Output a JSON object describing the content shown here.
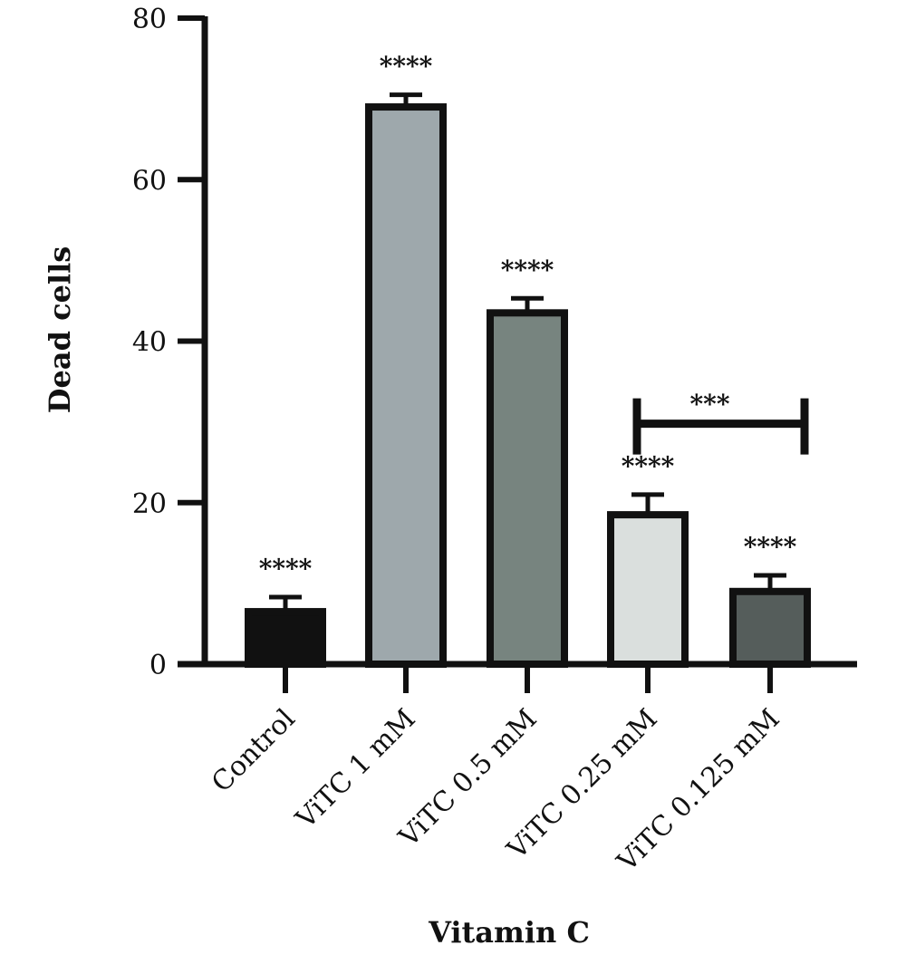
{
  "chart_data": {
    "type": "bar",
    "title": "",
    "xlabel": "Vitamin C",
    "ylabel": "Dead cells",
    "ylim": [
      0,
      80
    ],
    "yticks": [
      0,
      20,
      40,
      60,
      80
    ],
    "grid": false,
    "categories": [
      "Control",
      "ViTC 1 mM",
      "ViTC 0.5 mM",
      "ViTC 0.25 mM",
      "ViTC 0.125 mM"
    ],
    "values": [
      6.5,
      69,
      43.5,
      18.5,
      9
    ],
    "errors": [
      1.8,
      1.5,
      1.8,
      2.5,
      2.0
    ],
    "colors": [
      "#111111",
      "#9ea8ac",
      "#77847f",
      "#dadfdd",
      "#555d5b"
    ],
    "annotations": [
      "****",
      "****",
      "****",
      "****",
      "****"
    ],
    "comparison": {
      "from": "ViTC 0.25 mM",
      "to": "ViTC 0.125 mM",
      "label": "***",
      "y": 30
    }
  }
}
